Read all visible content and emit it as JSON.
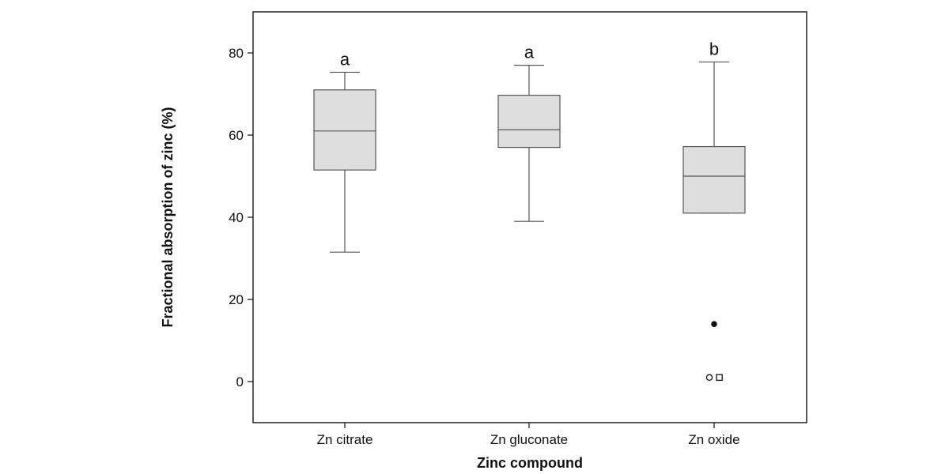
{
  "chart_data": {
    "type": "boxplot",
    "title": "",
    "xlabel": "Zinc compound",
    "ylabel": "Fractional absorption of zinc (%)",
    "ylim": [
      -10,
      90
    ],
    "yticks": [
      0,
      20,
      40,
      60,
      80
    ],
    "grid": false,
    "colors": {
      "box_fill": "#dedede",
      "stroke": "#555555",
      "frame": "#222222"
    },
    "categories": [
      "Zn citrate",
      "Zn gluconate",
      "Zn oxide"
    ],
    "boxes": [
      {
        "category": "Zn citrate",
        "whisker_low": 31.5,
        "q1": 51.5,
        "median": 61,
        "q3": 71,
        "whisker_high": 75.3,
        "significance": "a",
        "outliers": []
      },
      {
        "category": "Zn gluconate",
        "whisker_low": 39,
        "q1": 57,
        "median": 61.3,
        "q3": 69.7,
        "whisker_high": 77,
        "significance": "a",
        "outliers": []
      },
      {
        "category": "Zn oxide",
        "whisker_low": 41,
        "q1": 41,
        "median": 50,
        "q3": 57.2,
        "whisker_high": 77.8,
        "significance": "b",
        "outliers": [
          {
            "value": 14,
            "marker": "filled-circle"
          },
          {
            "value": 1,
            "marker": "open-circle"
          },
          {
            "value": 1,
            "marker": "open-square"
          }
        ]
      }
    ]
  }
}
